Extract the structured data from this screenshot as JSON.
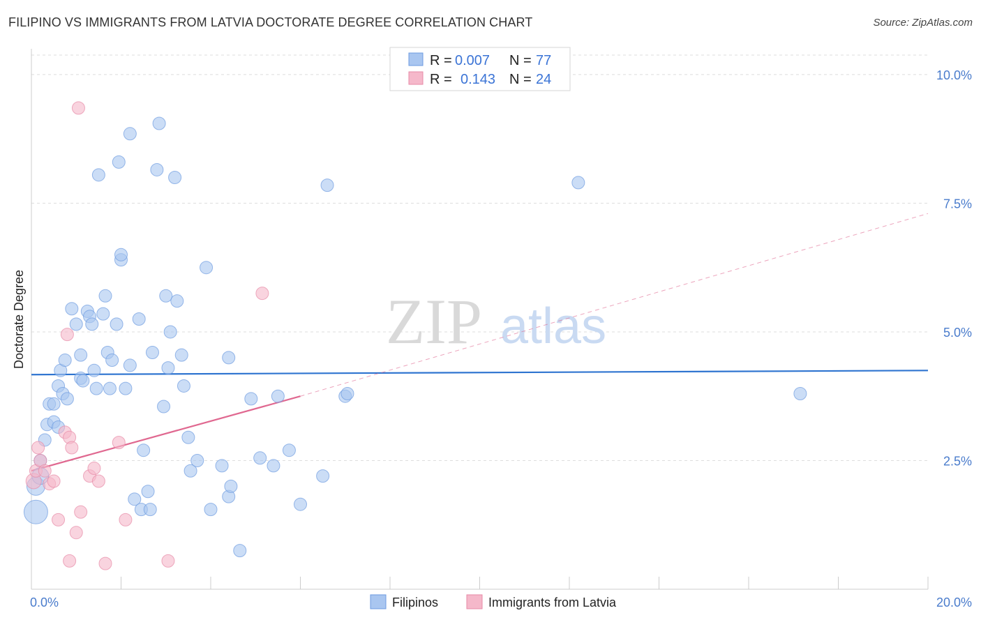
{
  "title": "FILIPINO VS IMMIGRANTS FROM LATVIA DOCTORATE DEGREE CORRELATION CHART",
  "source": "Source: ZipAtlas.com",
  "watermark": {
    "zip": "ZIP",
    "atlas": "atlas"
  },
  "colors": {
    "blue_fill": "#a9c6f0",
    "blue_stroke": "#6d9be0",
    "blue_line": "#2e74d0",
    "pink_fill": "#f5b8ca",
    "pink_stroke": "#e78aa7",
    "pink_line": "#e06890",
    "grid": "#dddddd",
    "tick_text": "#4a7ccc"
  },
  "legend": {
    "rows": [
      {
        "r_label": "R = ",
        "r_value": "0.007",
        "n_label": "N = ",
        "n_value": "77"
      },
      {
        "r_label": "R = ",
        "r_value": "0.143",
        "n_label": "N = ",
        "n_value": "24"
      }
    ]
  },
  "bottom_legend": [
    "Filipinos",
    "Immigrants from Latvia"
  ],
  "chart_data": {
    "type": "scatter",
    "title": "FILIPINO VS IMMIGRANTS FROM LATVIA DOCTORATE DEGREE CORRELATION CHART",
    "xlabel": "",
    "ylabel": "Doctorate Degree",
    "xlim": [
      0,
      20
    ],
    "ylim": [
      0,
      10.5
    ],
    "x_tick_labels": [
      {
        "value": 0,
        "label": "0.0%"
      },
      {
        "value": 20,
        "label": "20.0%"
      }
    ],
    "y_tick_labels": [
      {
        "value": 2.5,
        "label": "2.5%"
      },
      {
        "value": 5.0,
        "label": "5.0%"
      },
      {
        "value": 7.5,
        "label": "7.5%"
      },
      {
        "value": 10.0,
        "label": "10.0%"
      }
    ],
    "x_minor_ticks": [
      0,
      2,
      4,
      6,
      8,
      10,
      12,
      14,
      16,
      18,
      20
    ],
    "grid": true,
    "legend_position": "top-center",
    "series": [
      {
        "name": "Filipinos",
        "r": 0.007,
        "n": 77,
        "trend": {
          "x": [
            0,
            20
          ],
          "y": [
            4.17,
            4.25
          ],
          "dashed_extension": false
        },
        "points": [
          [
            0.1,
            1.5
          ],
          [
            0.1,
            2.0
          ],
          [
            0.2,
            2.2
          ],
          [
            0.2,
            2.5
          ],
          [
            0.3,
            2.9
          ],
          [
            0.35,
            3.2
          ],
          [
            0.4,
            3.6
          ],
          [
            0.5,
            3.6
          ],
          [
            0.5,
            3.25
          ],
          [
            0.6,
            3.15
          ],
          [
            0.6,
            3.95
          ],
          [
            0.65,
            4.25
          ],
          [
            0.7,
            3.8
          ],
          [
            0.75,
            4.45
          ],
          [
            0.8,
            3.7
          ],
          [
            0.9,
            5.45
          ],
          [
            1.0,
            5.15
          ],
          [
            1.1,
            4.1
          ],
          [
            1.1,
            4.55
          ],
          [
            1.15,
            4.05
          ],
          [
            1.25,
            5.4
          ],
          [
            1.3,
            5.3
          ],
          [
            1.35,
            5.15
          ],
          [
            1.4,
            4.25
          ],
          [
            1.45,
            3.9
          ],
          [
            1.5,
            8.05
          ],
          [
            1.6,
            5.35
          ],
          [
            1.65,
            5.7
          ],
          [
            1.7,
            4.6
          ],
          [
            1.75,
            3.9
          ],
          [
            1.8,
            4.45
          ],
          [
            1.9,
            5.15
          ],
          [
            1.95,
            8.3
          ],
          [
            2.0,
            6.4
          ],
          [
            2.0,
            6.5
          ],
          [
            2.1,
            3.9
          ],
          [
            2.2,
            8.85
          ],
          [
            2.2,
            4.35
          ],
          [
            2.3,
            1.75
          ],
          [
            2.4,
            5.25
          ],
          [
            2.45,
            1.55
          ],
          [
            2.5,
            2.7
          ],
          [
            2.6,
            1.9
          ],
          [
            2.65,
            1.55
          ],
          [
            2.7,
            4.6
          ],
          [
            2.8,
            8.15
          ],
          [
            2.85,
            9.05
          ],
          [
            2.95,
            3.55
          ],
          [
            3.0,
            5.7
          ],
          [
            3.05,
            4.3
          ],
          [
            3.1,
            5.0
          ],
          [
            3.2,
            8.0
          ],
          [
            3.25,
            5.6
          ],
          [
            3.35,
            4.55
          ],
          [
            3.4,
            3.95
          ],
          [
            3.5,
            2.95
          ],
          [
            3.55,
            2.3
          ],
          [
            3.7,
            2.5
          ],
          [
            3.9,
            6.25
          ],
          [
            4.0,
            1.55
          ],
          [
            4.25,
            2.4
          ],
          [
            4.4,
            1.8
          ],
          [
            4.4,
            4.5
          ],
          [
            4.45,
            2.0
          ],
          [
            4.65,
            0.75
          ],
          [
            4.9,
            3.7
          ],
          [
            5.1,
            2.55
          ],
          [
            5.4,
            2.4
          ],
          [
            5.5,
            3.75
          ],
          [
            5.75,
            2.7
          ],
          [
            6.0,
            1.65
          ],
          [
            6.5,
            2.2
          ],
          [
            6.6,
            7.85
          ],
          [
            7.0,
            3.75
          ],
          [
            7.05,
            3.8
          ],
          [
            12.2,
            7.9
          ],
          [
            17.15,
            3.8
          ]
        ]
      },
      {
        "name": "Immigrants from Latvia",
        "r": 0.143,
        "n": 24,
        "trend": {
          "x": [
            0,
            6
          ],
          "y": [
            2.3,
            3.75
          ],
          "dashed_extension": true,
          "dashed_to": [
            20,
            7.3
          ]
        },
        "points": [
          [
            0.05,
            2.1
          ],
          [
            0.1,
            2.3
          ],
          [
            0.15,
            2.75
          ],
          [
            0.2,
            2.5
          ],
          [
            0.3,
            2.3
          ],
          [
            0.4,
            2.05
          ],
          [
            0.5,
            2.1
          ],
          [
            0.6,
            1.35
          ],
          [
            0.75,
            3.05
          ],
          [
            0.8,
            4.95
          ],
          [
            0.85,
            2.95
          ],
          [
            0.85,
            0.55
          ],
          [
            0.9,
            2.75
          ],
          [
            1.0,
            1.1
          ],
          [
            1.05,
            9.35
          ],
          [
            1.1,
            1.5
          ],
          [
            1.3,
            2.2
          ],
          [
            1.4,
            2.35
          ],
          [
            1.5,
            2.1
          ],
          [
            1.65,
            0.5
          ],
          [
            1.95,
            2.85
          ],
          [
            2.1,
            1.35
          ],
          [
            3.05,
            0.55
          ],
          [
            5.15,
            5.75
          ]
        ]
      }
    ]
  }
}
